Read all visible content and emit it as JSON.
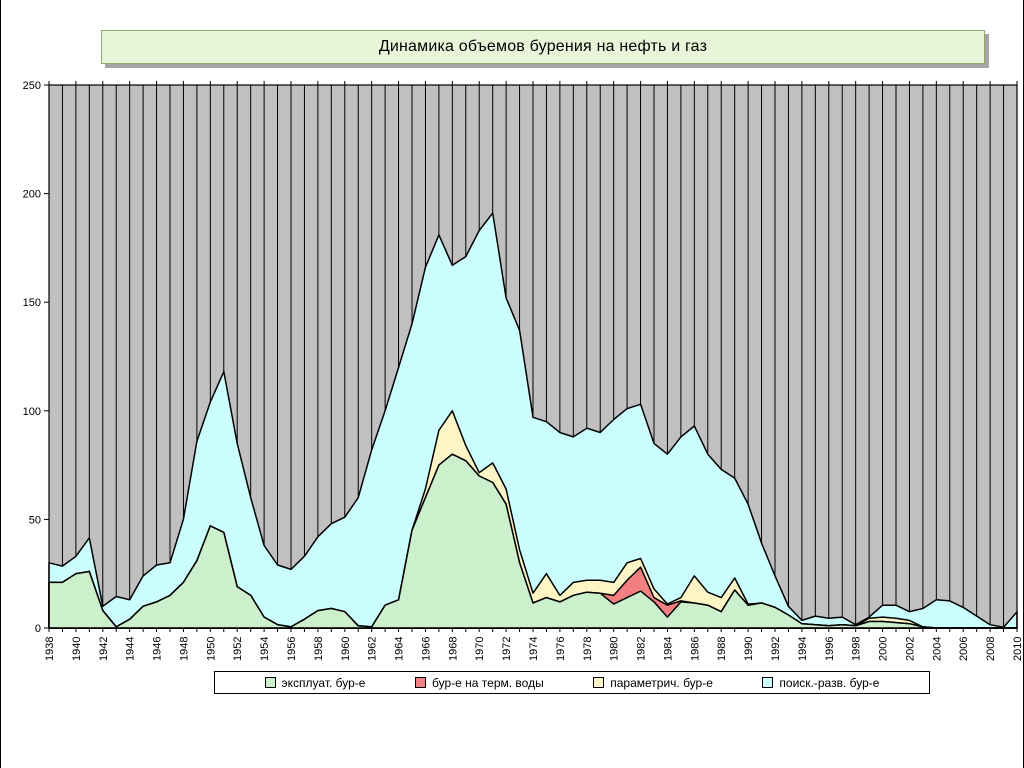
{
  "chart_data": {
    "type": "area",
    "stacked": true,
    "title": "Динамика объемов бурения на нефть и газ",
    "xlabel": "",
    "ylabel": "",
    "ylim": [
      0,
      250
    ],
    "yticks": [
      0,
      50,
      100,
      150,
      200,
      250
    ],
    "xtick_every_years": 2,
    "grid": "vertical-per-year",
    "plot_bg": "#c0c0c0",
    "legend_position": "bottom",
    "years": [
      1938,
      1939,
      1940,
      1941,
      1942,
      1943,
      1944,
      1945,
      1946,
      1947,
      1948,
      1949,
      1950,
      1951,
      1952,
      1953,
      1954,
      1955,
      1956,
      1957,
      1958,
      1959,
      1960,
      1961,
      1962,
      1963,
      1964,
      1965,
      1966,
      1967,
      1968,
      1969,
      1970,
      1971,
      1972,
      1973,
      1974,
      1975,
      1976,
      1977,
      1978,
      1979,
      1980,
      1981,
      1982,
      1983,
      1984,
      1985,
      1986,
      1987,
      1988,
      1989,
      1990,
      1991,
      1992,
      1993,
      1994,
      1995,
      1996,
      1997,
      1998,
      1999,
      2000,
      2001,
      2002,
      2003,
      2004,
      2005,
      2006,
      2007,
      2008,
      2009,
      2010
    ],
    "series": [
      {
        "name": "эксплуат. бур-е",
        "color": "#cdf0cc",
        "values": [
          21,
          21,
          25,
          26,
          8,
          0.5,
          4,
          10,
          12,
          15,
          21,
          31,
          47,
          44,
          19,
          15,
          5,
          1.5,
          0.5,
          4,
          8,
          9,
          7.5,
          1,
          0.5,
          10.5,
          13,
          45,
          60,
          75,
          80,
          77,
          70,
          67,
          57,
          30,
          11.5,
          14,
          12,
          15,
          16.5,
          16,
          11,
          14,
          17,
          12,
          5,
          12,
          11.5,
          10.5,
          7.5,
          17.5,
          10.5,
          11.5,
          9.5,
          6,
          2,
          1.5,
          1,
          1.5,
          1,
          3,
          3,
          2.5,
          2,
          0.5,
          0,
          0,
          0,
          0,
          0,
          0,
          0
        ]
      },
      {
        "name": "бур-е на терм. воды",
        "color": "#f28080",
        "values": [
          0,
          0,
          0,
          0,
          0,
          0,
          0,
          0,
          0,
          0,
          0,
          0,
          0,
          0,
          0,
          0,
          0,
          0,
          0,
          0,
          0,
          0,
          0,
          0,
          0,
          0,
          0,
          0,
          0,
          0,
          0,
          0,
          0,
          0,
          0,
          0,
          0,
          0,
          0,
          0,
          0,
          0,
          4,
          8,
          11,
          2,
          5.5,
          0.5,
          0,
          0,
          0,
          0,
          0,
          0,
          0,
          0,
          0,
          0,
          0,
          0,
          0,
          0,
          0,
          0,
          0,
          0,
          0,
          0,
          0,
          0,
          0,
          0,
          0
        ]
      },
      {
        "name": "параметрич. бур-е",
        "color": "#fdf5c6",
        "values": [
          0,
          0,
          0,
          0,
          0,
          0,
          0,
          0,
          0,
          0,
          0,
          0,
          0,
          0,
          0,
          0,
          0,
          0,
          0,
          0,
          0,
          0,
          0,
          0,
          0,
          0,
          0,
          0,
          4,
          16,
          20,
          7,
          1.5,
          9,
          7,
          6,
          4.5,
          11,
          3,
          6,
          5.5,
          6,
          6,
          8,
          4,
          4,
          0.5,
          1.5,
          12.5,
          6,
          6.5,
          5.5,
          0.5,
          0,
          0,
          0,
          0,
          0,
          0,
          0,
          0,
          1.5,
          2,
          2,
          1.5,
          0,
          0,
          0,
          0,
          0,
          0,
          0,
          0
        ]
      },
      {
        "name": "поиск.-разв. бур-е",
        "color": "#cbffff",
        "values": [
          9,
          7.5,
          8,
          15.5,
          2,
          14,
          9,
          14,
          17,
          15,
          29,
          55,
          57,
          74,
          66,
          45,
          33,
          27.5,
          26.5,
          29,
          34,
          39,
          43.5,
          59,
          81.5,
          89.5,
          107,
          95,
          102,
          90,
          67,
          87,
          111.5,
          115,
          88,
          101,
          81,
          70,
          75,
          67,
          70,
          68,
          75,
          71,
          71,
          67,
          69,
          74,
          69,
          63.5,
          59,
          46,
          46,
          27.5,
          14.5,
          4,
          1.5,
          4,
          3.5,
          3.5,
          0.5,
          0.5,
          5.5,
          6,
          4,
          8.5,
          13,
          12.5,
          9.5,
          5.5,
          1.5,
          0.3,
          7.4
        ]
      }
    ]
  }
}
